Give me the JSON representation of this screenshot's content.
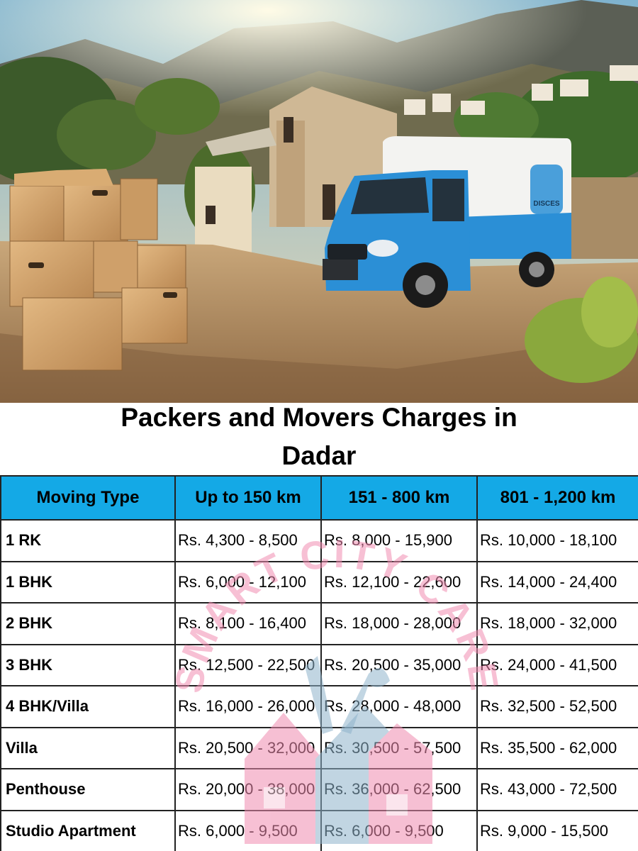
{
  "title": {
    "line1": "Packers and Movers Charges in",
    "line2": "Dadar"
  },
  "hero": {
    "truck_logo_text": "DISCES"
  },
  "table": {
    "headers": [
      "Moving Type",
      "Up to 150 km",
      "151 - 800 km",
      "801 - 1,200 km"
    ],
    "rows": [
      {
        "type": "1 RK",
        "p1": "Rs. 4,300 - 8,500",
        "p2": "Rs. 8,000 - 15,900",
        "p3": "Rs. 10,000 - 18,100"
      },
      {
        "type": "1 BHK",
        "p1": "Rs. 6,000 - 12,100",
        "p2": "Rs. 12,100 - 22,600",
        "p3": "Rs. 14,000 - 24,400"
      },
      {
        "type": "2 BHK",
        "p1": "Rs. 8,100 - 16,400",
        "p2": "Rs. 18,000 - 28,000",
        "p3": "Rs. 18,000 - 32,000"
      },
      {
        "type": "3 BHK",
        "p1": "Rs. 12,500 - 22,500",
        "p2": "Rs. 20,500 - 35,000",
        "p3": "Rs. 24,000 - 41,500"
      },
      {
        "type": "4 BHK/Villa",
        "p1": "Rs. 16,000 - 26,000",
        "p2": "Rs. 28,000 - 48,000",
        "p3": "Rs. 32,500 - 52,500"
      },
      {
        "type": "Villa",
        "p1": "Rs. 20,500 - 32,000",
        "p2": "Rs. 30,500 - 57,500",
        "p3": "Rs. 35,500 - 62,000"
      },
      {
        "type": "Penthouse",
        "p1": "Rs. 20,000 - 38,000",
        "p2": "Rs. 36,000 - 62,500",
        "p3": "Rs. 43,000 - 72,500"
      },
      {
        "type": "Studio Apartment",
        "p1": "Rs. 6,000 - 9,500",
        "p2": "Rs. 6,000 - 9,500",
        "p3": "Rs. 9,000 - 15,500"
      }
    ]
  },
  "watermark": {
    "text": "SMART CITY CARE"
  },
  "colors": {
    "header_bg": "#14a9e6",
    "watermark_pink": "#f08cb0",
    "watermark_blue": "#8fb4cc",
    "truck_blue": "#2b8fd6"
  }
}
